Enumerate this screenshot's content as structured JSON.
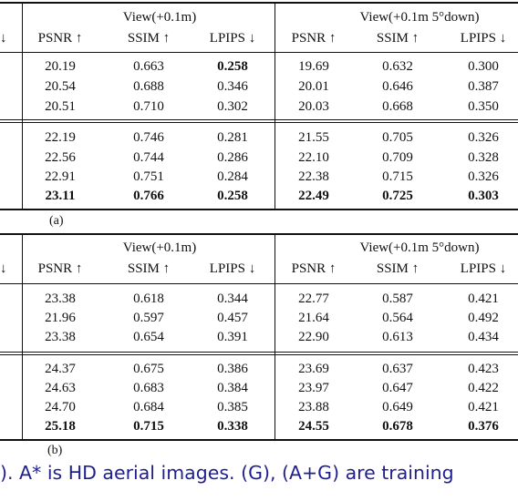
{
  "tables": [
    {
      "label": "(a)",
      "group1_header": "View(+0.1m)",
      "group2_header": "View(+0.1m 5°down)",
      "left_stub": "↓",
      "columns": [
        "PSNR ↑",
        "SSIM ↑",
        "LPIPS ↓",
        "PSNR ↑",
        "SSIM ↑",
        "LPIPS ↓"
      ],
      "blocks": [
        [
          [
            "20.19",
            "0.663",
            "0.258",
            "19.69",
            "0.632",
            "0.300"
          ],
          [
            "20.54",
            "0.688",
            "0.346",
            "20.01",
            "0.646",
            "0.387"
          ],
          [
            "20.51",
            "0.710",
            "0.302",
            "20.03",
            "0.668",
            "0.350"
          ]
        ],
        [
          [
            "22.19",
            "0.746",
            "0.281",
            "21.55",
            "0.705",
            "0.326"
          ],
          [
            "22.56",
            "0.744",
            "0.286",
            "22.10",
            "0.709",
            "0.328"
          ],
          [
            "22.91",
            "0.751",
            "0.284",
            "22.38",
            "0.715",
            "0.326"
          ],
          [
            "23.11",
            "0.766",
            "0.258",
            "22.49",
            "0.725",
            "0.303"
          ]
        ]
      ]
    },
    {
      "label": "(b)",
      "group1_header": "View(+0.1m)",
      "group2_header": "View(+0.1m 5°down)",
      "left_stub": "↓",
      "columns": [
        "PSNR ↑",
        "SSIM ↑",
        "LPIPS ↓",
        "PSNR ↑",
        "SSIM ↑",
        "LPIPS ↓"
      ],
      "blocks": [
        [
          [
            "23.38",
            "0.618",
            "0.344",
            "22.77",
            "0.587",
            "0.421"
          ],
          [
            "21.96",
            "0.597",
            "0.457",
            "21.64",
            "0.564",
            "0.492"
          ],
          [
            "23.38",
            "0.654",
            "0.391",
            "22.90",
            "0.613",
            "0.434"
          ]
        ],
        [
          [
            "24.37",
            "0.675",
            "0.386",
            "23.69",
            "0.637",
            "0.423"
          ],
          [
            "24.63",
            "0.683",
            "0.384",
            "23.97",
            "0.647",
            "0.422"
          ],
          [
            "24.70",
            "0.684",
            "0.385",
            "23.88",
            "0.649",
            "0.421"
          ],
          [
            "25.18",
            "0.715",
            "0.338",
            "24.55",
            "0.678",
            "0.376"
          ]
        ]
      ]
    }
  ],
  "bold_cells_a": [
    [
      0,
      0,
      2
    ],
    [
      1,
      3,
      0
    ],
    [
      1,
      3,
      1
    ],
    [
      1,
      3,
      2
    ],
    [
      1,
      3,
      3
    ],
    [
      1,
      3,
      4
    ],
    [
      1,
      3,
      5
    ]
  ],
  "bold_cells_b": [
    [
      1,
      3,
      0
    ],
    [
      1,
      3,
      1
    ],
    [
      1,
      3,
      2
    ],
    [
      1,
      3,
      3
    ],
    [
      1,
      3,
      4
    ],
    [
      1,
      3,
      5
    ]
  ],
  "caption_text": "). A* is HD aerial images. (G), (A+G) are training"
}
